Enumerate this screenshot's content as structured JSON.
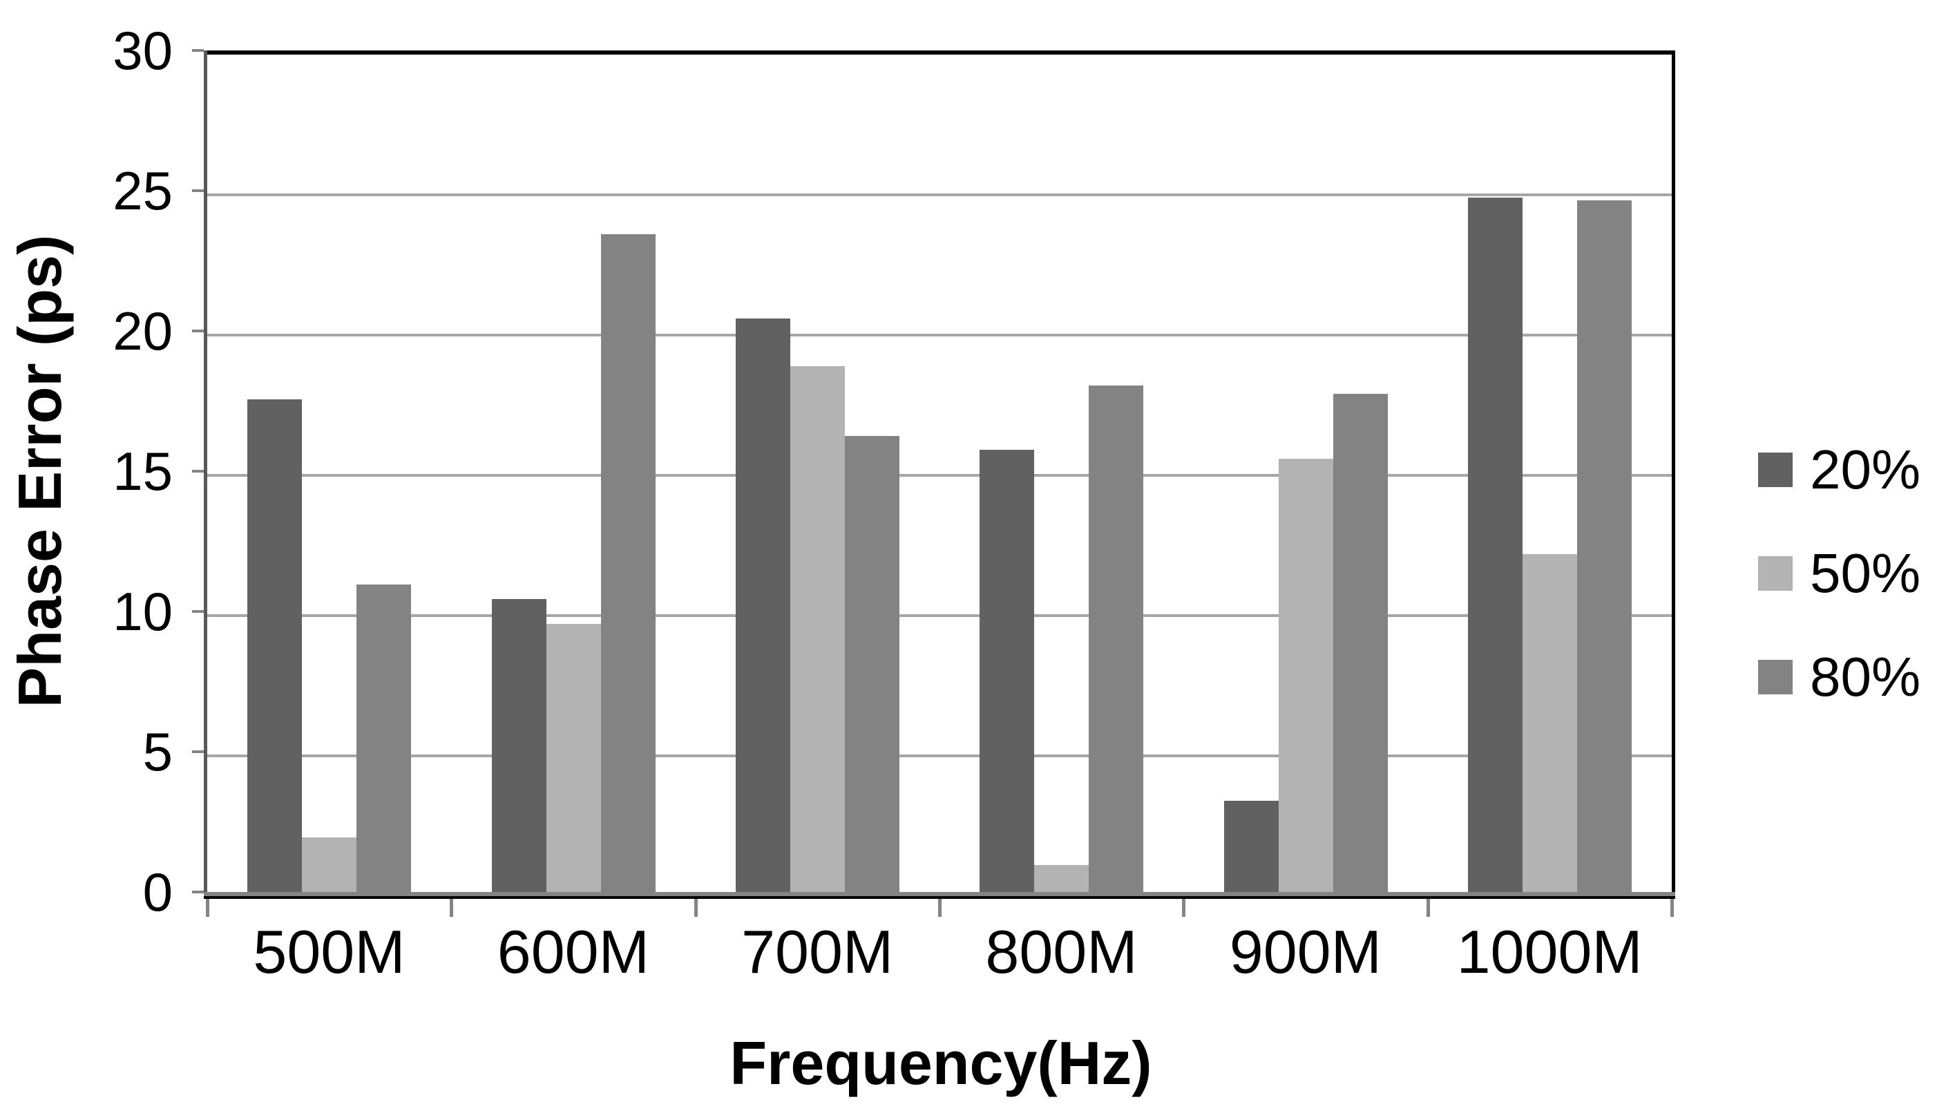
{
  "chart_data": {
    "type": "bar",
    "title": "",
    "categories": [
      "500M",
      "600M",
      "700M",
      "800M",
      "900M",
      "1000M"
    ],
    "series": [
      {
        "name": "20%",
        "color": "#616161",
        "values": [
          17.7,
          10.6,
          20.6,
          15.9,
          3.4,
          24.9
        ]
      },
      {
        "name": "50%",
        "color": "#b3b3b3",
        "values": [
          2.1,
          9.7,
          18.9,
          1.1,
          15.6,
          12.2
        ]
      },
      {
        "name": "80%",
        "color": "#838383",
        "values": [
          11.1,
          23.6,
          16.4,
          18.2,
          17.9,
          24.8
        ]
      }
    ],
    "xlabel": "Frequency(Hz)",
    "ylabel": "Phase Error (ps)",
    "ylim": [
      0,
      30
    ],
    "yticks": [
      0,
      5,
      10,
      15,
      20,
      25,
      30
    ],
    "grid": true,
    "gridline_color": "#a6a6a6",
    "legend_position": "right"
  }
}
